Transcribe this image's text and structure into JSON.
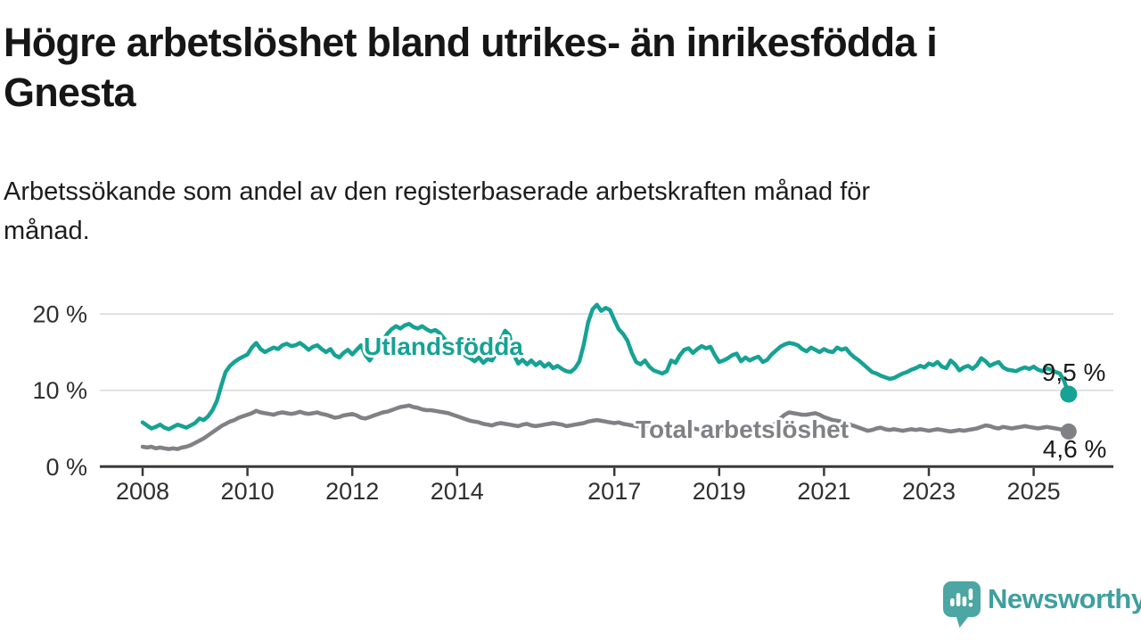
{
  "header": {
    "title": "Högre arbetslöshet bland utrikes- än inrikesfödda i Gnesta",
    "title_lines": [
      "Högre arbetslöshet bland utrikes- än inrikesfödda i",
      "Gnesta"
    ],
    "subtitle": "Arbetssökande som andel av den registerbaserade arbetskraften månad för månad.",
    "subtitle_lines": [
      "Arbetssökande som andel av den registerbaserade arbetskraften månad för",
      "månad."
    ]
  },
  "chart_data": {
    "type": "line",
    "unit": "%",
    "grid": "horizontal-only",
    "x_start_year": 2008,
    "x_step_years": 0.0833,
    "x_ticks": [
      {
        "v": 2008,
        "label": "2008"
      },
      {
        "v": 2010,
        "label": "2010"
      },
      {
        "v": 2012,
        "label": "2012"
      },
      {
        "v": 2014,
        "label": "2014"
      },
      {
        "v": 2017,
        "label": "2017"
      },
      {
        "v": 2019,
        "label": "2019"
      },
      {
        "v": 2021,
        "label": "2021"
      },
      {
        "v": 2023,
        "label": "2023"
      },
      {
        "v": 2025,
        "label": "2025"
      }
    ],
    "y_ticks": [
      {
        "v": 0,
        "label": "0 %"
      },
      {
        "v": 10,
        "label": "10 %"
      },
      {
        "v": 20,
        "label": "20 %"
      }
    ],
    "ylim": [
      0,
      22
    ],
    "colors": {
      "grid": "#d8d8d8",
      "axis": "#383838",
      "tick_text": "#2f2f2f",
      "value_label_text": "#1a1a1a"
    },
    "series": [
      {
        "name": "Utlandsfödda",
        "color": "#16a294",
        "end_label": "9,5 %",
        "last_value": 9.5,
        "values": [
          5.8,
          5.4,
          5.0,
          5.2,
          5.5,
          5.1,
          4.9,
          5.2,
          5.5,
          5.3,
          5.1,
          5.4,
          5.7,
          6.3,
          6.1,
          6.6,
          7.4,
          8.6,
          10.6,
          12.4,
          13.2,
          13.7,
          14.1,
          14.4,
          14.7,
          15.6,
          16.2,
          15.4,
          15.0,
          15.3,
          15.6,
          15.4,
          15.9,
          16.1,
          15.8,
          15.9,
          16.2,
          15.8,
          15.3,
          15.7,
          15.9,
          15.4,
          15.0,
          15.4,
          14.6,
          14.3,
          14.9,
          15.3,
          14.7,
          15.3,
          15.9,
          14.6,
          13.9,
          14.8,
          15.7,
          16.5,
          17.4,
          18.0,
          18.4,
          18.1,
          18.5,
          18.7,
          18.3,
          18.1,
          18.4,
          18.0,
          17.7,
          17.9,
          17.5,
          16.8,
          16.2,
          15.8,
          15.4,
          14.9,
          14.5,
          14.2,
          13.8,
          14.3,
          13.6,
          14.1,
          13.9,
          14.9,
          16.6,
          17.8,
          17.2,
          14.6,
          13.5,
          14.0,
          13.4,
          13.9,
          13.3,
          13.7,
          13.1,
          13.5,
          12.9,
          13.2,
          12.8,
          12.5,
          12.4,
          12.9,
          13.8,
          16.0,
          18.9,
          20.6,
          21.2,
          20.4,
          20.8,
          20.5,
          19.2,
          18.0,
          17.4,
          16.5,
          14.9,
          13.7,
          13.4,
          13.9,
          13.1,
          12.6,
          12.4,
          12.2,
          12.5,
          13.9,
          13.6,
          14.6,
          15.3,
          15.5,
          14.9,
          15.4,
          15.8,
          15.5,
          15.7,
          14.6,
          13.7,
          13.9,
          14.2,
          14.6,
          14.8,
          13.8,
          14.3,
          13.9,
          14.2,
          14.4,
          13.7,
          14.0,
          14.7,
          15.2,
          15.7,
          16.0,
          16.2,
          16.1,
          15.9,
          15.4,
          15.1,
          15.6,
          15.3,
          15.0,
          15.4,
          15.1,
          15.0,
          15.6,
          15.3,
          15.5,
          14.8,
          14.3,
          13.9,
          13.4,
          12.9,
          12.4,
          12.2,
          11.9,
          11.7,
          11.5,
          11.6,
          11.9,
          12.2,
          12.4,
          12.7,
          12.9,
          13.2,
          13.0,
          13.5,
          13.3,
          13.7,
          13.1,
          12.9,
          13.9,
          13.4,
          12.6,
          13.0,
          13.2,
          12.8,
          13.3,
          14.2,
          13.8,
          13.2,
          13.5,
          13.7,
          13.0,
          12.7,
          12.6,
          12.5,
          12.8,
          13.0,
          12.8,
          13.1,
          12.7,
          12.5,
          12.9,
          12.7,
          12.4,
          12.2,
          11.2,
          9.5
        ]
      },
      {
        "name": "Total arbetslöshet",
        "color": "#7f8184",
        "end_label": "4,6 %",
        "last_value": 4.6,
        "values": [
          2.6,
          2.5,
          2.6,
          2.4,
          2.5,
          2.4,
          2.3,
          2.4,
          2.3,
          2.5,
          2.6,
          2.8,
          3.1,
          3.4,
          3.7,
          4.1,
          4.5,
          4.9,
          5.3,
          5.6,
          5.9,
          6.1,
          6.4,
          6.6,
          6.8,
          7.0,
          7.3,
          7.1,
          7.0,
          6.9,
          6.8,
          7.0,
          7.1,
          7.0,
          6.9,
          7.0,
          7.2,
          7.0,
          6.9,
          7.0,
          7.1,
          6.9,
          6.8,
          6.6,
          6.4,
          6.5,
          6.7,
          6.8,
          6.9,
          6.7,
          6.4,
          6.3,
          6.5,
          6.7,
          6.9,
          7.1,
          7.2,
          7.4,
          7.6,
          7.8,
          7.9,
          8.0,
          7.8,
          7.7,
          7.5,
          7.4,
          7.4,
          7.3,
          7.2,
          7.1,
          7.0,
          6.8,
          6.6,
          6.4,
          6.2,
          6.0,
          5.9,
          5.8,
          5.6,
          5.5,
          5.4,
          5.6,
          5.7,
          5.6,
          5.5,
          5.4,
          5.3,
          5.5,
          5.6,
          5.4,
          5.3,
          5.4,
          5.5,
          5.6,
          5.7,
          5.6,
          5.5,
          5.3,
          5.4,
          5.5,
          5.6,
          5.7,
          5.9,
          6.0,
          6.1,
          6.0,
          5.9,
          5.8,
          5.7,
          5.8,
          5.6,
          5.5,
          5.4,
          5.3,
          5.2,
          5.3,
          5.2,
          5.1,
          5.0,
          5.1,
          5.2,
          5.1,
          5.0,
          4.9,
          5.0,
          5.1,
          5.0,
          4.9,
          4.8,
          4.9,
          5.0,
          4.9,
          4.8,
          4.9,
          5.0,
          4.9,
          4.8,
          4.9,
          5.0,
          4.9,
          5.0,
          5.1,
          5.0,
          5.1,
          5.3,
          5.7,
          6.3,
          6.8,
          7.1,
          7.0,
          6.9,
          6.8,
          6.8,
          6.9,
          7.0,
          6.8,
          6.5,
          6.3,
          6.1,
          6.0,
          5.9,
          5.7,
          5.5,
          5.3,
          5.1,
          4.9,
          4.7,
          4.8,
          5.0,
          5.1,
          4.9,
          4.8,
          4.9,
          4.8,
          4.7,
          4.8,
          4.9,
          4.8,
          4.9,
          4.8,
          4.7,
          4.8,
          4.9,
          4.8,
          4.7,
          4.6,
          4.7,
          4.8,
          4.7,
          4.8,
          4.9,
          5.0,
          5.2,
          5.4,
          5.3,
          5.1,
          5.0,
          5.2,
          5.1,
          5.0,
          5.1,
          5.2,
          5.3,
          5.2,
          5.1,
          5.0,
          5.1,
          5.2,
          5.1,
          5.0,
          4.9,
          4.8,
          4.6
        ]
      }
    ]
  },
  "footer": {
    "brand": "Newsworthy",
    "brand_color": "#3f9f9e",
    "logo_icon": "newsworthy-speech-bubble-bar-chart",
    "logo_color": "#4ba6a4"
  }
}
